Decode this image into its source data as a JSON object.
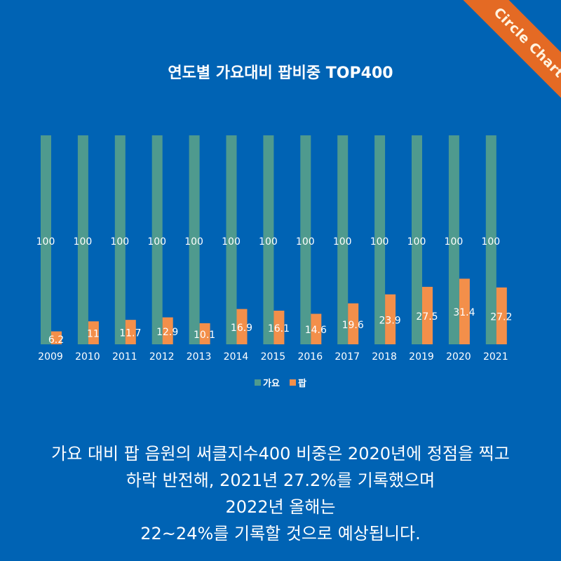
{
  "badge": {
    "label": "Circle Chart"
  },
  "title": "연도별 가요대비 팝비중 TOP400",
  "colors": {
    "background": "#0063b4",
    "kpop": "#4f9a8e",
    "pop": "#f38f4a",
    "ribbon": "#e46a24"
  },
  "chart_data": {
    "type": "bar",
    "title": "연도별 가요대비 팝비중 TOP400",
    "xlabel": "",
    "ylabel": "",
    "ylim": [
      0,
      100
    ],
    "grid": false,
    "legend_position": "bottom",
    "categories": [
      "2009",
      "2010",
      "2011",
      "2012",
      "2013",
      "2014",
      "2015",
      "2016",
      "2017",
      "2018",
      "2019",
      "2020",
      "2021"
    ],
    "series": [
      {
        "name": "가요",
        "color": "#4f9a8e",
        "values": [
          100,
          100,
          100,
          100,
          100,
          100,
          100,
          100,
          100,
          100,
          100,
          100,
          100
        ],
        "labels": [
          "100",
          "100",
          "100",
          "100",
          "100",
          "100",
          "100",
          "100",
          "100",
          "100",
          "100",
          "100",
          "100"
        ]
      },
      {
        "name": "팝",
        "color": "#f38f4a",
        "values": [
          6.2,
          11,
          11.7,
          12.9,
          10.1,
          16.9,
          16.1,
          14.6,
          19.6,
          23.9,
          27.5,
          31.4,
          27.2
        ],
        "labels": [
          "6.2",
          "11",
          "11.7",
          "12.9",
          "10.1",
          "16.9",
          "16.1",
          "14.6",
          "19.6",
          "23.9",
          "27.5",
          "31.4",
          "27.2"
        ]
      }
    ]
  },
  "caption": {
    "lines": [
      "가요 대비 팝 음원의 써클지수400 비중은 2020년에 정점을 찍고",
      "하락 반전해, 2021년 27.2%를 기록했으며",
      "2022년 올해는",
      "22~24%를 기록할 것으로 예상됩니다."
    ]
  }
}
